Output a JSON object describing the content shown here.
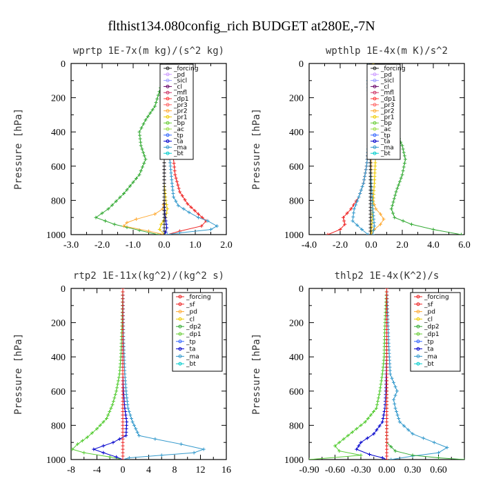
{
  "figure_title": "flthist134.080config_rich  BUDGET at280E,-7N",
  "chart_data": [
    {
      "type": "line",
      "title": "wprtp   1E-7x(m kg)/(s^2 kg)",
      "ylabel": "Pressure [hPa]",
      "xlim": [
        -3.0,
        2.0
      ],
      "ylim": [
        1000,
        0
      ],
      "xticks": [
        "-3.0",
        "-2.0",
        "-1.0",
        "0.0",
        "1.0",
        "2.0"
      ],
      "xtick_values": [
        -3,
        -2,
        -1,
        0,
        1,
        2
      ],
      "yticks": [
        "0",
        "200",
        "400",
        "600",
        "800",
        "1000"
      ],
      "legend_position": "top-center",
      "legend": [
        {
          "name": "_forcing",
          "color": "#222222"
        },
        {
          "name": "_pd",
          "color": "#cc99ff"
        },
        {
          "name": "_sicl",
          "color": "#9999ff"
        },
        {
          "name": "_cl",
          "color": "#660066"
        },
        {
          "name": "_mfl",
          "color": "#cc3366"
        },
        {
          "name": "_dp1",
          "color": "#ff3333"
        },
        {
          "name": "_pr3",
          "color": "#ff6666"
        },
        {
          "name": "_pr2",
          "color": "#ffaa33"
        },
        {
          "name": "_pr1",
          "color": "#eecc00"
        },
        {
          "name": "_bp",
          "color": "#66cc33"
        },
        {
          "name": "_ac",
          "color": "#99dd44"
        },
        {
          "name": "_tp",
          "color": "#3366ff"
        },
        {
          "name": "_ta",
          "color": "#0000cc"
        },
        {
          "name": "_ma",
          "color": "#3399cc"
        },
        {
          "name": "_bt",
          "color": "#00cccc"
        }
      ],
      "series": [
        {
          "name": "_bp",
          "color": "#33aa33",
          "x": [
            0,
            -0.05,
            -0.3,
            -0.6,
            -0.8,
            -0.75,
            -0.6,
            -0.8,
            -1.3,
            -1.8,
            -2.2,
            -1.6,
            -0.8,
            -0.2
          ],
          "y": [
            0,
            100,
            250,
            330,
            400,
            480,
            560,
            650,
            760,
            850,
            900,
            940,
            975,
            1000
          ]
        },
        {
          "name": "_dp1",
          "color": "#ee2222",
          "x": [
            0,
            0.05,
            0.15,
            0.3,
            0.35,
            0.3,
            0.35,
            0.5,
            0.75,
            1.1,
            1.35,
            1.2,
            0.5,
            0.1
          ],
          "y": [
            0,
            100,
            250,
            400,
            480,
            560,
            650,
            750,
            820,
            880,
            920,
            950,
            980,
            1000
          ]
        },
        {
          "name": "_tp",
          "color": "#3399cc",
          "x": [
            0,
            0.05,
            0.1,
            0.15,
            0.2,
            0.25,
            0.3,
            0.45,
            0.8,
            1.1,
            1.4,
            1.7,
            1.5,
            0.5,
            0.1
          ],
          "y": [
            0,
            200,
            400,
            500,
            600,
            700,
            780,
            830,
            870,
            900,
            920,
            950,
            970,
            990,
            1000
          ]
        },
        {
          "name": "_pr2",
          "color": "#ffaa33",
          "x": [
            0,
            0,
            0,
            -0.05,
            -0.3,
            -0.9,
            -1.2,
            -1.3,
            -0.5,
            0
          ],
          "y": [
            0,
            600,
            800,
            850,
            880,
            910,
            930,
            950,
            980,
            1000
          ]
        },
        {
          "name": "_pr1",
          "color": "#eecc00",
          "x": [
            0,
            0,
            0.05,
            0.1,
            0.05,
            -0.1,
            -0.15,
            0
          ],
          "y": [
            0,
            700,
            800,
            850,
            900,
            940,
            970,
            1000
          ]
        },
        {
          "name": "_ta",
          "color": "#0000cc",
          "x": [
            0,
            0,
            0.02,
            0.05,
            0.08,
            0.05,
            0
          ],
          "y": [
            0,
            800,
            880,
            920,
            960,
            985,
            1000
          ]
        },
        {
          "name": "_forcing",
          "color": "#222222",
          "x": [
            0,
            0,
            0
          ],
          "y": [
            0,
            500,
            1000
          ]
        }
      ]
    },
    {
      "type": "line",
      "title": "wpthlp   1E-4x(m K)/s^2",
      "ylabel": "Pressure [hPa]",
      "xlim": [
        -4.0,
        6.0
      ],
      "ylim": [
        1000,
        0
      ],
      "xticks": [
        "-4.0",
        "-2.0",
        "0.0",
        "2.0",
        "4.0",
        "6.0"
      ],
      "xtick_values": [
        -4,
        -2,
        0,
        2,
        4,
        6
      ],
      "yticks": [
        "0",
        "200",
        "400",
        "600",
        "800",
        "1000"
      ],
      "legend_position": "top-center",
      "legend": [
        {
          "name": "_forcing",
          "color": "#222222"
        },
        {
          "name": "_pd",
          "color": "#cc99ff"
        },
        {
          "name": "_sicl",
          "color": "#9999ff"
        },
        {
          "name": "_cl",
          "color": "#660066"
        },
        {
          "name": "_mfl",
          "color": "#cc3366"
        },
        {
          "name": "_dp1",
          "color": "#ff3333"
        },
        {
          "name": "_pr3",
          "color": "#ff6666"
        },
        {
          "name": "_pr2",
          "color": "#ffaa33"
        },
        {
          "name": "_pr1",
          "color": "#eecc00"
        },
        {
          "name": "_bp",
          "color": "#66cc33"
        },
        {
          "name": "_ac",
          "color": "#99dd44"
        },
        {
          "name": "_tp",
          "color": "#3366ff"
        },
        {
          "name": "_ta",
          "color": "#0000cc"
        },
        {
          "name": "_ma",
          "color": "#3399cc"
        },
        {
          "name": "_bt",
          "color": "#00cccc"
        }
      ],
      "series": [
        {
          "name": "_bp",
          "color": "#33aa33",
          "x": [
            0,
            0.2,
            0.6,
            1.1,
            1.6,
            2.0,
            2.2,
            2.0,
            1.6,
            1.3,
            1.5,
            2.6,
            4.0,
            5.8
          ],
          "y": [
            0,
            150,
            250,
            320,
            400,
            480,
            560,
            650,
            750,
            850,
            900,
            940,
            970,
            1000
          ]
        },
        {
          "name": "_dp1",
          "color": "#ee2222",
          "x": [
            0,
            -0.05,
            -0.1,
            -0.2,
            -0.3,
            -0.5,
            -0.8,
            -1.3,
            -1.8,
            -1.7,
            -2.0,
            -2.8
          ],
          "y": [
            0,
            200,
            400,
            500,
            600,
            700,
            780,
            850,
            900,
            940,
            970,
            1000
          ]
        },
        {
          "name": "_tp",
          "color": "#3399cc",
          "x": [
            0,
            -0.05,
            -0.1,
            -0.2,
            -0.3,
            -0.5,
            -0.8,
            -1.1,
            -1.2,
            -0.6,
            -0.2
          ],
          "y": [
            0,
            200,
            400,
            500,
            600,
            700,
            780,
            850,
            920,
            970,
            1000
          ]
        },
        {
          "name": "_pr2",
          "color": "#ffaa33",
          "x": [
            0,
            0,
            0.1,
            0.3,
            0.6,
            0.8,
            0.6,
            0.2,
            0
          ],
          "y": [
            0,
            700,
            800,
            850,
            880,
            910,
            940,
            970,
            1000
          ]
        },
        {
          "name": "_pr1",
          "color": "#eecc00",
          "x": [
            0.1,
            0.3,
            0.35,
            0.3,
            0.2,
            0.1,
            0
          ],
          "y": [
            0,
            100,
            300,
            500,
            700,
            850,
            1000
          ]
        },
        {
          "name": "_ma",
          "color": "#3399cc",
          "x": [
            -0.1,
            -0.2,
            -0.15,
            -0.1,
            0,
            0.1,
            0.2,
            0.1
          ],
          "y": [
            0,
            100,
            300,
            500,
            700,
            850,
            950,
            1000
          ]
        },
        {
          "name": "_forcing",
          "color": "#222222",
          "x": [
            -0.05,
            -0.05,
            -0.05
          ],
          "y": [
            0,
            500,
            1000
          ]
        }
      ]
    },
    {
      "type": "line",
      "title": "rtp2   1E-11x(kg^2)/(kg^2 s)",
      "ylabel": "Pressure [hPa]",
      "xlim": [
        -8,
        16
      ],
      "ylim": [
        1000,
        0
      ],
      "xticks": [
        "-8",
        "-4",
        "0",
        "4",
        "8",
        "12",
        "16"
      ],
      "xtick_values": [
        -8,
        -4,
        0,
        4,
        8,
        12,
        16
      ],
      "yticks": [
        "0",
        "200",
        "400",
        "600",
        "800",
        "1000"
      ],
      "legend_position": "top-right",
      "legend": [
        {
          "name": "_forcing",
          "color": "#ee2222"
        },
        {
          "name": "_sf",
          "color": "#ee2222"
        },
        {
          "name": "_pd",
          "color": "#ffaa33"
        },
        {
          "name": "_cl",
          "color": "#eecc00"
        },
        {
          "name": "_dp2",
          "color": "#33aa33"
        },
        {
          "name": "_dp1",
          "color": "#66cc33"
        },
        {
          "name": "_tp",
          "color": "#3366ff"
        },
        {
          "name": "_ta",
          "color": "#0000cc"
        },
        {
          "name": "_ma",
          "color": "#3399cc"
        },
        {
          "name": "_bt",
          "color": "#00cccc"
        }
      ],
      "series": [
        {
          "name": "_dp1",
          "color": "#55cc33",
          "x": [
            0,
            -0.1,
            -0.3,
            -0.5,
            -1.0,
            -1.6,
            -2.5,
            -4.0,
            -5.5,
            -7.0,
            -7.8,
            -6.0,
            -2.0,
            0
          ],
          "y": [
            0,
            200,
            400,
            500,
            600,
            680,
            760,
            820,
            870,
            910,
            940,
            960,
            985,
            1000
          ]
        },
        {
          "name": "_ta",
          "color": "#0000cc",
          "x": [
            0,
            0,
            0.1,
            0.3,
            0.6,
            0.5,
            -1.5,
            -4.5,
            -3.0,
            -1.0,
            0
          ],
          "y": [
            0,
            500,
            600,
            700,
            780,
            860,
            900,
            940,
            960,
            985,
            1000
          ]
        },
        {
          "name": "_tp",
          "color": "#3399cc",
          "x": [
            0,
            0.1,
            0.3,
            0.5,
            0.8,
            1.5,
            2.5,
            5.0,
            9.0,
            12.5,
            11.0,
            6.0,
            1.0,
            0
          ],
          "y": [
            0,
            300,
            500,
            600,
            700,
            780,
            860,
            880,
            910,
            940,
            960,
            975,
            990,
            1000
          ]
        },
        {
          "name": "_forcing",
          "color": "#ee2222",
          "x": [
            0,
            0,
            0
          ],
          "y": [
            0,
            500,
            1000
          ]
        }
      ]
    },
    {
      "type": "line",
      "title": "thlp2   1E-4x(K^2)/s",
      "ylabel": "Pressure [hPa]",
      "xlim": [
        -0.9,
        0.9
      ],
      "ylim": [
        1000,
        0
      ],
      "xticks": [
        "-0.90",
        "-0.60",
        "-0.30",
        "0.00",
        "0.30",
        "0.60"
      ],
      "xtick_values": [
        -0.9,
        -0.6,
        -0.3,
        0.0,
        0.3,
        0.6
      ],
      "yticks": [
        "0",
        "200",
        "400",
        "600",
        "800",
        "1000"
      ],
      "legend_position": "top-right",
      "legend": [
        {
          "name": "_forcing",
          "color": "#ee2222"
        },
        {
          "name": "_sf",
          "color": "#ee2222"
        },
        {
          "name": "_pd",
          "color": "#ffaa33"
        },
        {
          "name": "_cl",
          "color": "#eecc00"
        },
        {
          "name": "_dp2",
          "color": "#33aa33"
        },
        {
          "name": "_dp1",
          "color": "#66cc33"
        },
        {
          "name": "_tp",
          "color": "#3366ff"
        },
        {
          "name": "_ta",
          "color": "#0000cc"
        },
        {
          "name": "_ma",
          "color": "#3399cc"
        },
        {
          "name": "_bt",
          "color": "#00cccc"
        }
      ],
      "series": [
        {
          "name": "_dp1",
          "color": "#55cc33",
          "x": [
            0,
            -0.02,
            -0.03,
            -0.05,
            -0.08,
            -0.12,
            -0.25,
            -0.45,
            -0.6,
            -0.55,
            -0.3,
            -0.9
          ],
          "y": [
            0,
            200,
            400,
            500,
            600,
            700,
            780,
            860,
            920,
            950,
            975,
            1000
          ]
        },
        {
          "name": "_ta",
          "color": "#0000cc",
          "x": [
            0,
            0,
            -0.01,
            -0.02,
            -0.05,
            -0.15,
            -0.3,
            -0.35,
            -0.2,
            -0.05,
            0
          ],
          "y": [
            0,
            400,
            600,
            700,
            780,
            850,
            900,
            940,
            970,
            990,
            1000
          ]
        },
        {
          "name": "_tp",
          "color": "#3399cc",
          "x": [
            0,
            0.02,
            0.04,
            0.08,
            0.12,
            0.08,
            0.1,
            0.15,
            0.3,
            0.55,
            0.7,
            0.6,
            0.3,
            0.05
          ],
          "y": [
            0,
            300,
            500,
            550,
            600,
            650,
            700,
            780,
            850,
            900,
            930,
            960,
            980,
            1000
          ]
        },
        {
          "name": "_dp2",
          "color": "#33aa33",
          "x": [
            0,
            0,
            0,
            0.1,
            0.3,
            0.6,
            0.9
          ],
          "y": [
            0,
            800,
            900,
            950,
            975,
            990,
            1000
          ]
        },
        {
          "name": "_forcing",
          "color": "#ee2222",
          "x": [
            0,
            0,
            0
          ],
          "y": [
            0,
            500,
            1000
          ]
        }
      ]
    }
  ]
}
